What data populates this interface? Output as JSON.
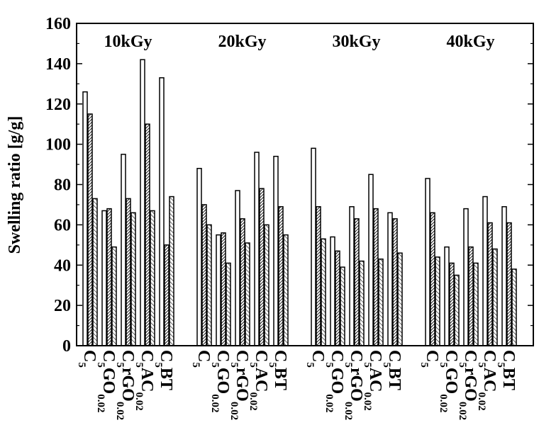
{
  "chart_data": {
    "type": "grouped-bar",
    "y_label": "Swelling ratio [g/g]",
    "groups": [
      "10kGy",
      "20kGy",
      "30kGy",
      "40kGy"
    ],
    "categories": [
      [
        "C",
        "5"
      ],
      [
        "C",
        "5",
        "GO",
        "0.02"
      ],
      [
        "C",
        "5",
        "rGO",
        "0.02"
      ],
      [
        "C",
        "5",
        "AC",
        "0.02"
      ],
      [
        "C",
        "5",
        "BT"
      ]
    ],
    "series": [
      {
        "color": "#000000",
        "hatch": "none",
        "values": [
          [
            126,
            67,
            95,
            142,
            133
          ],
          [
            88,
            55,
            77,
            96,
            94
          ],
          [
            98,
            54,
            69,
            85,
            66
          ],
          [
            83,
            49,
            68,
            74,
            69
          ]
        ]
      },
      {
        "color": "#000000",
        "hatch": "dense",
        "values": [
          [
            115,
            68,
            73,
            110,
            50
          ],
          [
            70,
            56,
            63,
            78,
            69
          ],
          [
            69,
            47,
            63,
            68,
            63
          ],
          [
            66,
            41,
            49,
            61,
            61
          ]
        ]
      },
      {
        "color": "#000000",
        "hatch": "back",
        "values": [
          [
            73,
            49,
            66,
            67,
            74
          ],
          [
            60,
            41,
            51,
            60,
            55
          ],
          [
            53,
            39,
            42,
            43,
            46
          ],
          [
            44,
            35,
            41,
            48,
            38
          ]
        ]
      }
    ],
    "ylim": [
      0,
      160
    ],
    "yticks": [
      0,
      20,
      40,
      60,
      80,
      100,
      120,
      140,
      160
    ]
  }
}
